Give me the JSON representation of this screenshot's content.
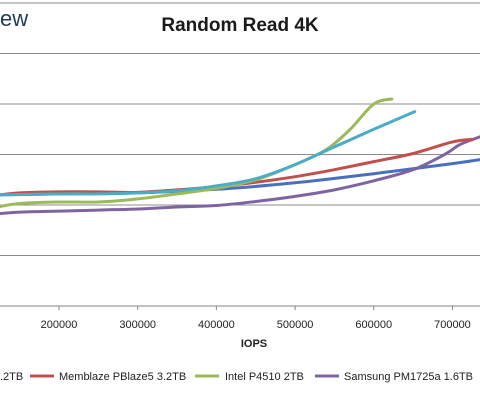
{
  "header": {
    "brand_fragment": "ew"
  },
  "chart_data": {
    "type": "line",
    "title": "Random Read 4K",
    "xlabel": "IOPS",
    "ylabel": "",
    "xlim": [
      125000,
      735000
    ],
    "ylim": [
      0,
      6
    ],
    "x_ticks": [
      200000,
      300000,
      400000,
      500000,
      600000,
      700000
    ],
    "x_tick_labels": [
      "200000",
      "300000",
      "400000",
      "500000",
      "600000",
      "700000"
    ],
    "y_gridlines": [
      1,
      2,
      3,
      4,
      5,
      6
    ],
    "grid": "horizontal",
    "legend": "bottom",
    "series": [
      {
        "name": ".2TB",
        "color": "#4a6fbf",
        "points": [
          [
            125000,
            2.2
          ],
          [
            200000,
            2.22
          ],
          [
            300000,
            2.24
          ],
          [
            400000,
            2.31
          ],
          [
            500000,
            2.44
          ],
          [
            600000,
            2.62
          ],
          [
            700000,
            2.82
          ],
          [
            735000,
            2.9
          ]
        ]
      },
      {
        "name": "Memblaze PBlaze5 3.2TB",
        "color": "#c0504d",
        "points": [
          [
            125000,
            2.2
          ],
          [
            150000,
            2.24
          ],
          [
            200000,
            2.26
          ],
          [
            250000,
            2.26
          ],
          [
            300000,
            2.25
          ],
          [
            350000,
            2.3
          ],
          [
            400000,
            2.36
          ],
          [
            450000,
            2.45
          ],
          [
            500000,
            2.56
          ],
          [
            550000,
            2.7
          ],
          [
            600000,
            2.86
          ],
          [
            650000,
            3.02
          ],
          [
            700000,
            3.25
          ],
          [
            725000,
            3.3
          ]
        ]
      },
      {
        "name": "Intel P4510 2TB",
        "color": "#9bbb59",
        "points": [
          [
            125000,
            1.97
          ],
          [
            150000,
            2.03
          ],
          [
            200000,
            2.06
          ],
          [
            250000,
            2.06
          ],
          [
            300000,
            2.12
          ],
          [
            350000,
            2.22
          ],
          [
            400000,
            2.33
          ],
          [
            450000,
            2.5
          ],
          [
            500000,
            2.8
          ],
          [
            540000,
            3.1
          ],
          [
            570000,
            3.5
          ],
          [
            600000,
            4.0
          ],
          [
            623000,
            4.1
          ]
        ]
      },
      {
        "name": "Samsung PM1725a 1.6TB",
        "color": "#8064a2",
        "points": [
          [
            125000,
            1.83
          ],
          [
            150000,
            1.86
          ],
          [
            200000,
            1.88
          ],
          [
            250000,
            1.9
          ],
          [
            300000,
            1.92
          ],
          [
            350000,
            1.96
          ],
          [
            400000,
            1.99
          ],
          [
            450000,
            2.07
          ],
          [
            500000,
            2.17
          ],
          [
            550000,
            2.3
          ],
          [
            600000,
            2.48
          ],
          [
            650000,
            2.7
          ],
          [
            690000,
            3.0
          ],
          [
            710000,
            3.2
          ],
          [
            735000,
            3.35
          ]
        ]
      },
      {
        "name": "",
        "color": "#4bacc6",
        "points": [
          [
            125000,
            2.2
          ],
          [
            200000,
            2.22
          ],
          [
            250000,
            2.22
          ],
          [
            300000,
            2.24
          ],
          [
            350000,
            2.28
          ],
          [
            400000,
            2.38
          ],
          [
            450000,
            2.52
          ],
          [
            500000,
            2.8
          ],
          [
            550000,
            3.15
          ],
          [
            600000,
            3.5
          ],
          [
            630000,
            3.7
          ],
          [
            652000,
            3.85
          ]
        ]
      }
    ]
  }
}
